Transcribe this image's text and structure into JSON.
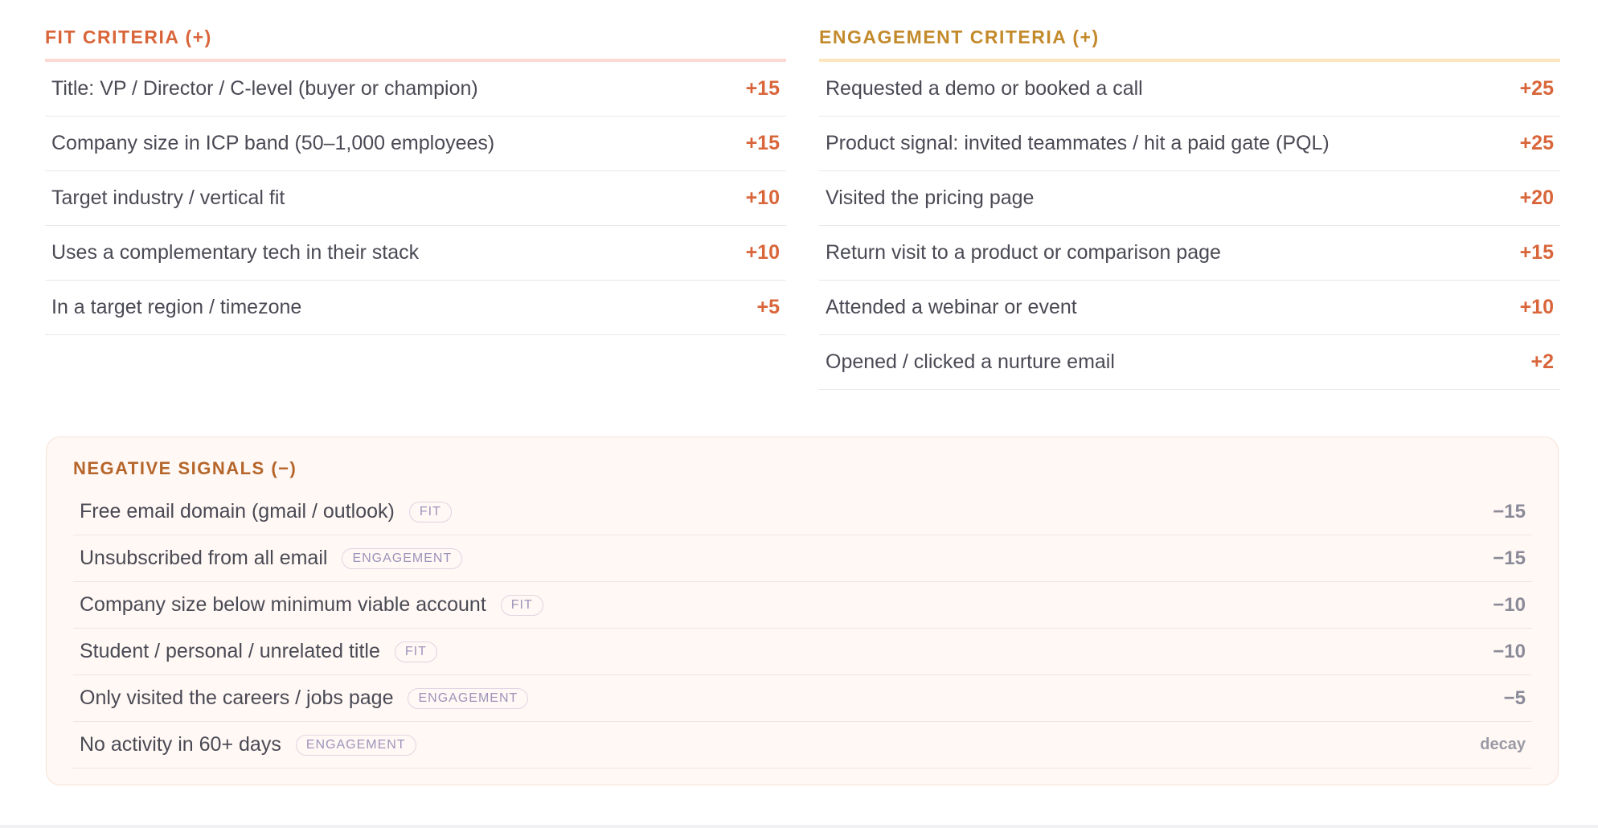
{
  "fit": {
    "title": "FIT CRITERIA (+)",
    "rows": [
      {
        "label": "Title: VP / Director / C-level (buyer or champion)",
        "points": "+15"
      },
      {
        "label": "Company size in ICP band (50–1,000 employees)",
        "points": "+15"
      },
      {
        "label": "Target industry / vertical fit",
        "points": "+10"
      },
      {
        "label": "Uses a complementary tech in their stack",
        "points": "+10"
      },
      {
        "label": "In a target region / timezone",
        "points": "+5"
      }
    ]
  },
  "engagement": {
    "title": "ENGAGEMENT CRITERIA (+)",
    "rows": [
      {
        "label": "Requested a demo or booked a call",
        "points": "+25"
      },
      {
        "label": "Product signal: invited teammates / hit a paid gate (PQL)",
        "points": "+25"
      },
      {
        "label": "Visited the pricing page",
        "points": "+20"
      },
      {
        "label": "Return visit to a product or comparison page",
        "points": "+15"
      },
      {
        "label": "Attended a webinar or event",
        "points": "+10"
      },
      {
        "label": "Opened / clicked a nurture email",
        "points": "+2"
      }
    ]
  },
  "negative": {
    "title": "NEGATIVE SIGNALS (−)",
    "rows": [
      {
        "label": "Free email domain (gmail / outlook)",
        "tag": "FIT",
        "points": "−15"
      },
      {
        "label": "Unsubscribed from all email",
        "tag": "ENGAGEMENT",
        "points": "−15"
      },
      {
        "label": "Company size below minimum viable account",
        "tag": "FIT",
        "points": "−10"
      },
      {
        "label": "Student / personal / unrelated title",
        "tag": "FIT",
        "points": "−10"
      },
      {
        "label": "Only visited the careers / jobs page",
        "tag": "ENGAGEMENT",
        "points": "−5"
      },
      {
        "label": "No activity in 60+ days",
        "tag": "ENGAGEMENT",
        "points": "decay"
      }
    ]
  }
}
